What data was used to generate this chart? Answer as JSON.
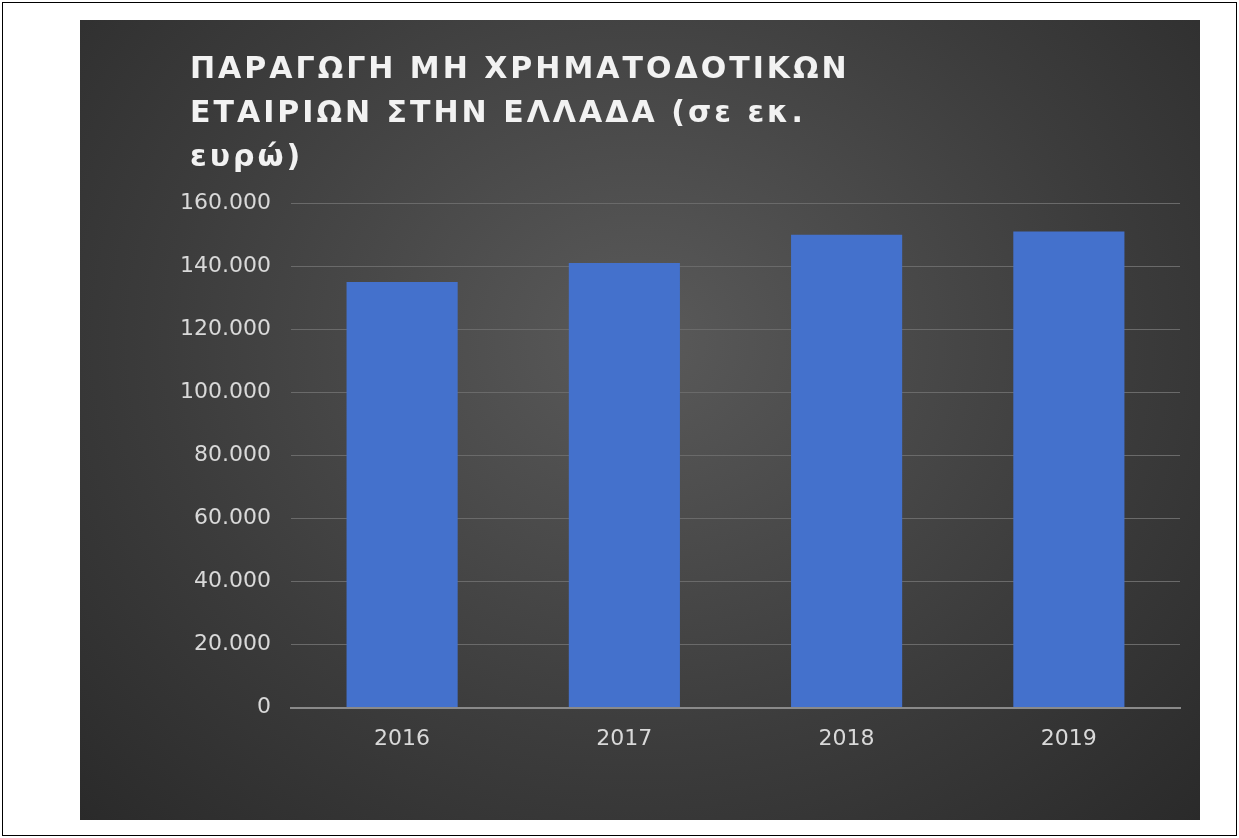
{
  "chart_data": {
    "type": "bar",
    "title": "ΠΑΡΑΓΩΓΗ ΜΗ ΧΡΗΜΑΤΟΔΟΤΙΚΩΝ ΕΤΑΙΡΙΩΝ ΣΤΗΝ ΕΛΛΑΔΑ (σε εκ. ευρώ)",
    "categories": [
      "2016",
      "2017",
      "2018",
      "2019"
    ],
    "values": [
      135000,
      141000,
      150000,
      151000
    ],
    "color": "#4471cc",
    "ylim": [
      0,
      160000
    ],
    "yticks": [
      0,
      {
        "value": 20000,
        "label": "20.000"
      },
      {
        "value": 40000,
        "label": "40.000"
      },
      {
        "value": 60000,
        "label": "60.000"
      },
      {
        "value": 80000,
        "label": "80.000"
      },
      {
        "value": 100000,
        "label": "100.000"
      },
      {
        "value": 120000,
        "label": "120.000"
      },
      {
        "value": 140000,
        "label": "140.000"
      },
      {
        "value": 160000,
        "label": "160.000"
      }
    ],
    "grid": "y"
  }
}
